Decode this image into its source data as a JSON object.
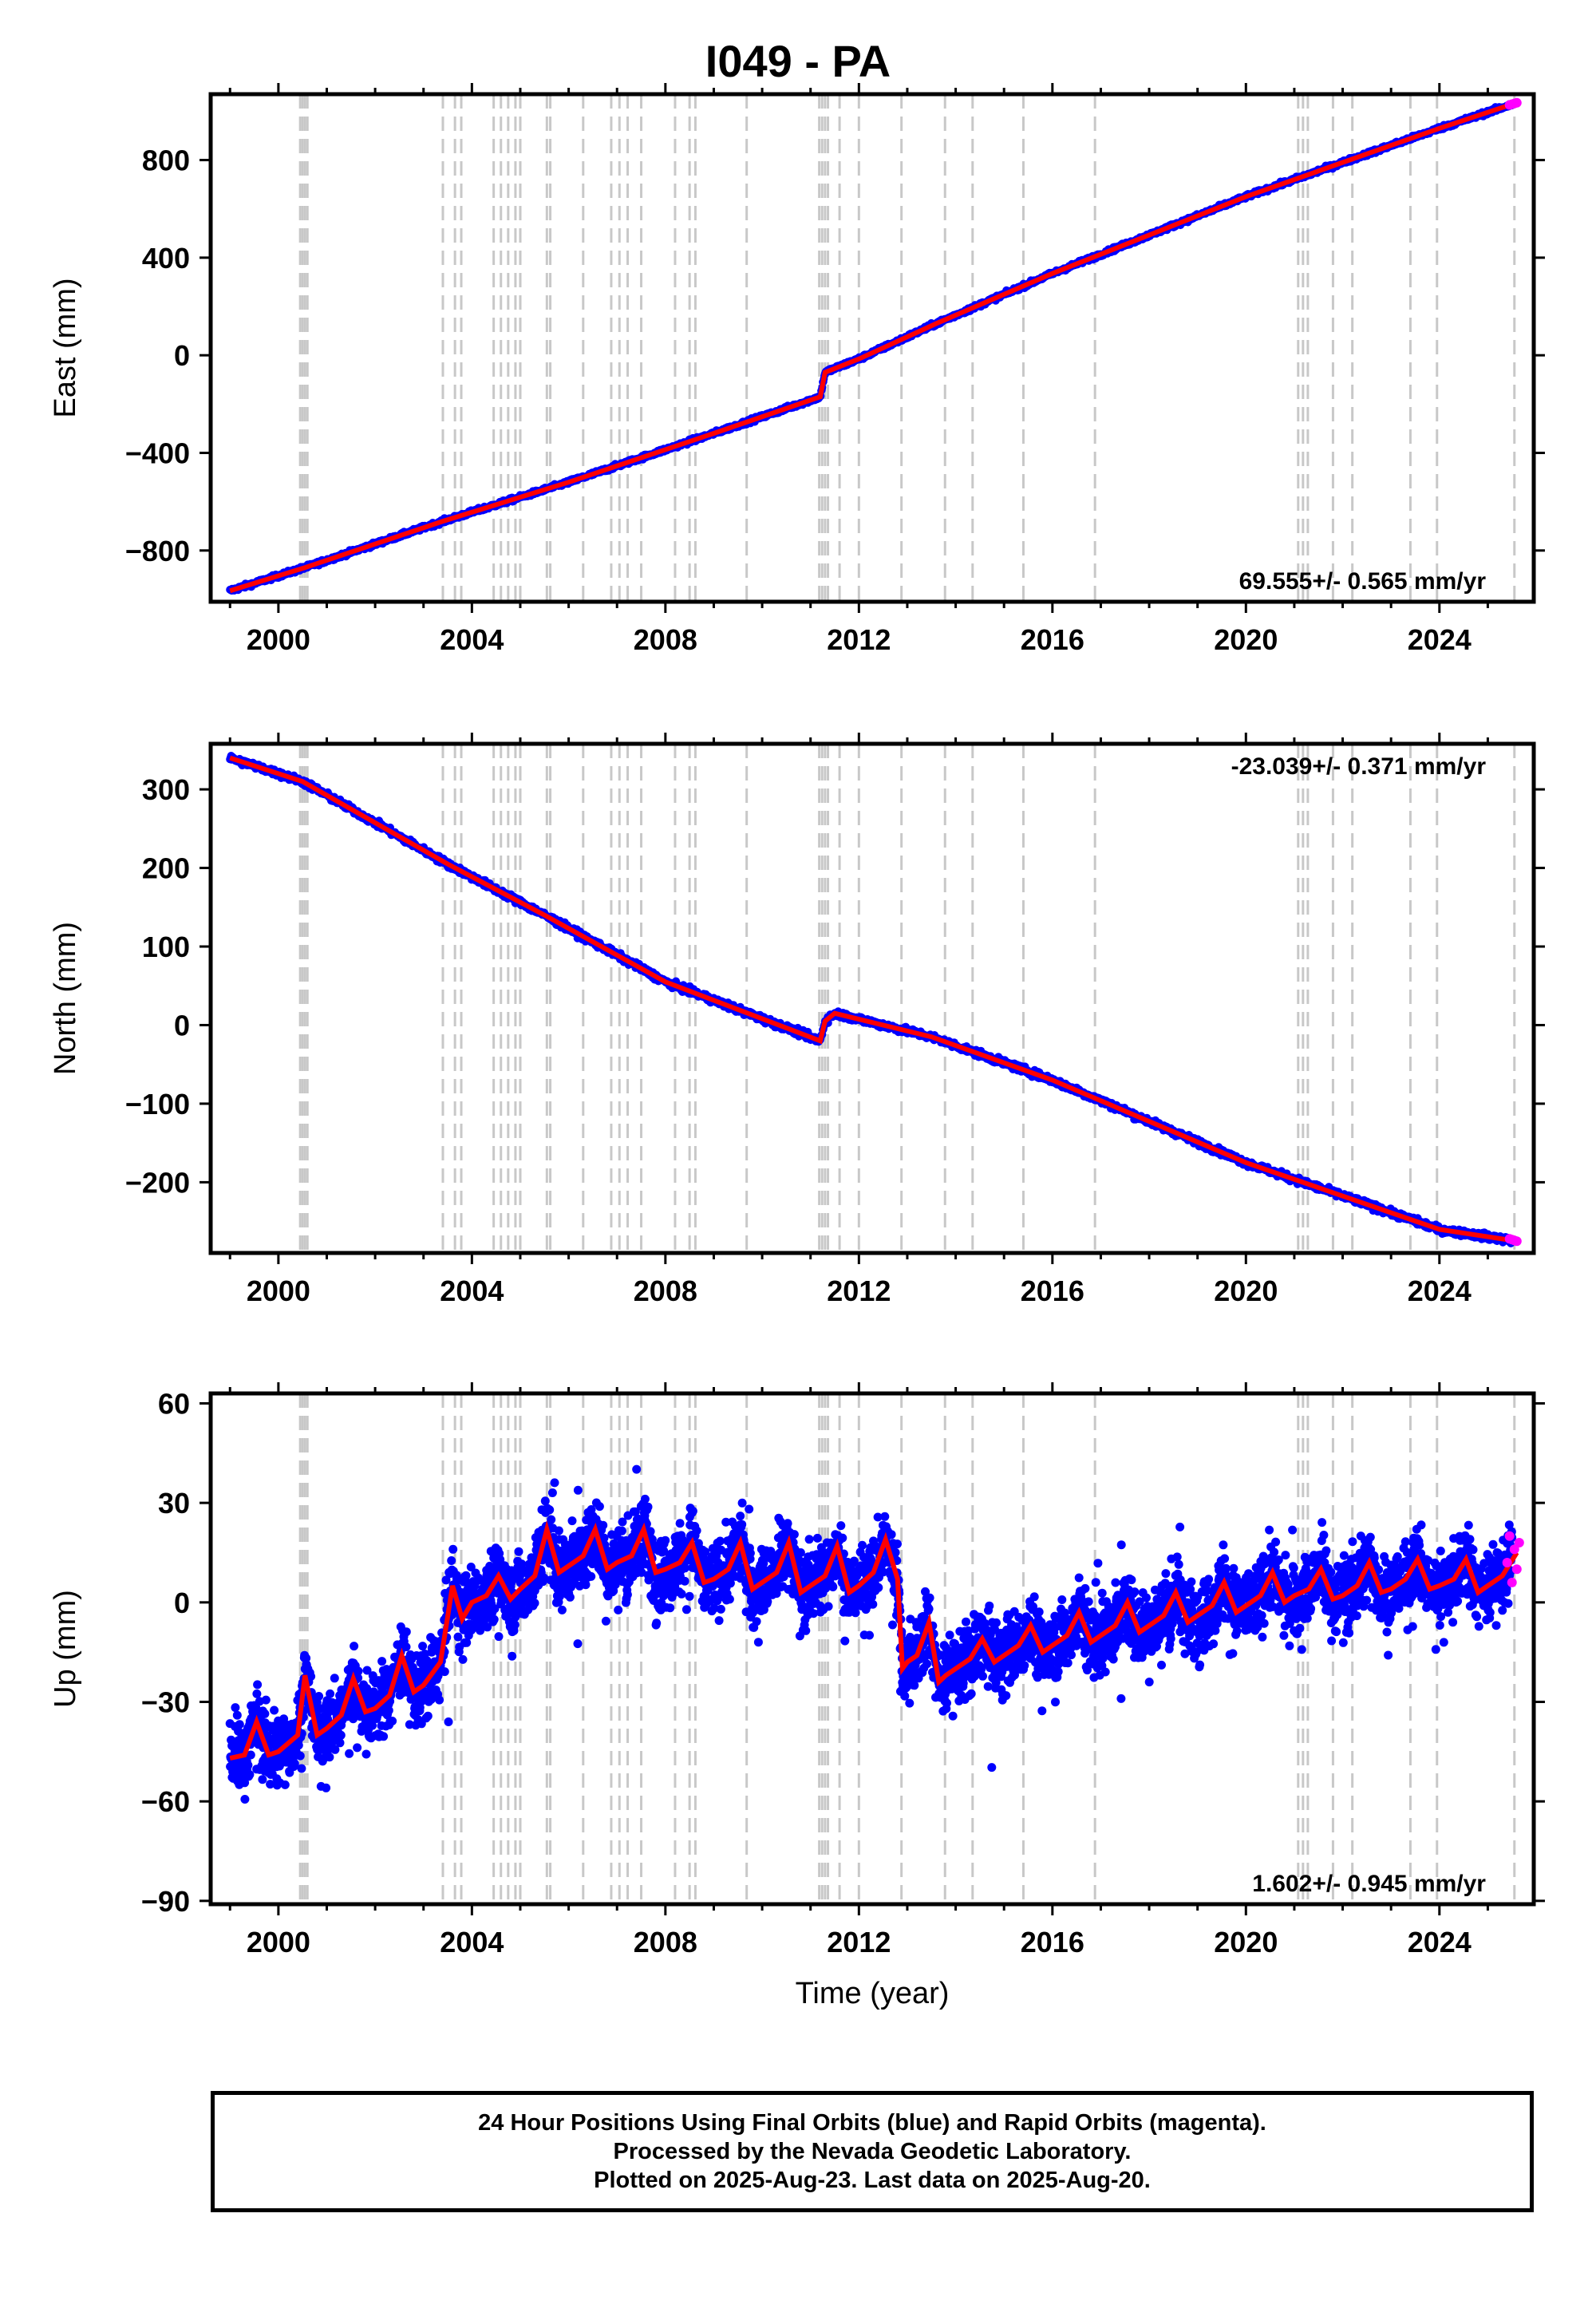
{
  "title": "I049 - PA",
  "footer": {
    "line1": "24 Hour Positions Using Final Orbits (blue) and Rapid Orbits (magenta).",
    "line2": "Processed by the Nevada Geodetic Laboratory.",
    "line3": "Plotted on 2025-Aug-23. Last data on 2025-Aug-20."
  },
  "colors": {
    "final_orbits": "#0000ff",
    "rapid_orbits": "#ff00ff",
    "model": "#ff0000",
    "event_lines": "#c8c8c8"
  },
  "chart_data": [
    {
      "type": "scatter",
      "ylabel": "East (mm)",
      "xlabel": "",
      "xlim": [
        1998.6,
        2025.95
      ],
      "ylim": [
        -1010,
        1070
      ],
      "xticks": [
        2000,
        2004,
        2008,
        2012,
        2016,
        2020,
        2024
      ],
      "yticks": [
        -800,
        -400,
        0,
        400,
        800
      ],
      "rate_label": "69.555+/- 0.565 mm/yr",
      "rate_position": "bottom-right",
      "grid": false,
      "model": {
        "x": [
          1999.0,
          2000.55,
          2003.4,
          2006.0,
          2009.0,
          2011.2,
          2011.3,
          2012.0,
          2013.6,
          2016.0,
          2020.0,
          2024.0,
          2025.6
        ],
        "y": [
          -965,
          -870,
          -680,
          -520,
          -320,
          -170,
          -70,
          -15,
          130,
          335,
          650,
          930,
          1035
        ]
      },
      "rapid_points": {
        "x": [
          2025.45,
          2025.5,
          2025.55,
          2025.6
        ],
        "y": [
          1026,
          1029,
          1032,
          1035
        ]
      }
    },
    {
      "type": "scatter",
      "ylabel": "North (mm)",
      "xlabel": "",
      "xlim": [
        1998.6,
        2025.95
      ],
      "ylim": [
        -290,
        358
      ],
      "xticks": [
        2000,
        2004,
        2008,
        2012,
        2016,
        2020,
        2024
      ],
      "yticks": [
        -200,
        -100,
        0,
        100,
        200,
        300
      ],
      "rate_label": "-23.039+/- 0.371 mm/yr",
      "rate_position": "top-right",
      "grid": false,
      "model": {
        "x": [
          1999.0,
          2000.5,
          2003.5,
          2005.5,
          2008.0,
          2011.2,
          2011.3,
          2011.5,
          2013.5,
          2016.0,
          2020.0,
          2024.0,
          2025.6
        ],
        "y": [
          340,
          310,
          205,
          140,
          55,
          -20,
          5,
          15,
          -15,
          -70,
          -175,
          -260,
          -275
        ]
      },
      "rapid_points": {
        "x": [
          2025.45,
          2025.5,
          2025.55,
          2025.6
        ],
        "y": [
          -272,
          -273,
          -274,
          -275
        ]
      }
    },
    {
      "type": "scatter",
      "ylabel": "Up (mm)",
      "xlabel": "Time (year)",
      "xlim": [
        1998.6,
        2025.95
      ],
      "ylim": [
        -91,
        63
      ],
      "xticks": [
        2000,
        2004,
        2008,
        2012,
        2016,
        2020,
        2024
      ],
      "yticks": [
        -90,
        -60,
        -30,
        0,
        30,
        60
      ],
      "rate_label": "1.602+/- 0.945 mm/yr",
      "rate_position": "bottom-right",
      "grid": false,
      "model": {
        "x": [
          1999.0,
          1999.3,
          1999.55,
          1999.8,
          2000.0,
          2000.4,
          2000.55,
          2000.8,
          2001.0,
          2001.3,
          2001.55,
          2001.8,
          2002.0,
          2002.3,
          2002.55,
          2002.8,
          2003.0,
          2003.35,
          2003.6,
          2003.8,
          2004.0,
          2004.3,
          2004.55,
          2004.8,
          2005.0,
          2005.3,
          2005.55,
          2005.8,
          2006.0,
          2006.3,
          2006.55,
          2006.8,
          2007.0,
          2007.3,
          2007.55,
          2007.8,
          2008.0,
          2008.3,
          2008.55,
          2008.8,
          2009.0,
          2009.3,
          2009.55,
          2009.8,
          2010.0,
          2010.3,
          2010.55,
          2010.8,
          2011.0,
          2011.3,
          2011.55,
          2011.8,
          2012.0,
          2012.3,
          2012.55,
          2012.8,
          2012.9,
          2013.0,
          2013.2,
          2013.45,
          2013.65,
          2013.8,
          2014.0,
          2014.3,
          2014.55,
          2014.8,
          2015.0,
          2015.3,
          2015.55,
          2015.8,
          2016.0,
          2016.3,
          2016.55,
          2016.8,
          2017.0,
          2017.3,
          2017.55,
          2017.8,
          2018.0,
          2018.3,
          2018.55,
          2018.8,
          2019.0,
          2019.3,
          2019.55,
          2019.8,
          2020.0,
          2020.3,
          2020.55,
          2020.8,
          2021.0,
          2021.3,
          2021.55,
          2021.8,
          2022.0,
          2022.3,
          2022.55,
          2022.8,
          2023.0,
          2023.3,
          2023.55,
          2023.8,
          2024.0,
          2024.3,
          2024.55,
          2024.8,
          2025.0,
          2025.3,
          2025.6
        ],
        "y": [
          -47,
          -46,
          -36,
          -46,
          -45,
          -40,
          -22,
          -40,
          -38,
          -34,
          -23,
          -33,
          -32,
          -28,
          -16,
          -27,
          -25,
          -18,
          5,
          -5,
          0,
          2,
          8,
          1,
          4,
          8,
          22,
          9,
          11,
          14,
          22,
          10,
          12,
          14,
          22,
          9,
          10,
          12,
          18,
          6,
          7,
          10,
          18,
          4,
          6,
          9,
          18,
          3,
          5,
          8,
          17,
          3,
          5,
          9,
          19,
          7,
          -20,
          -18,
          -16,
          -6,
          -24,
          -22,
          -20,
          -17,
          -11,
          -18,
          -16,
          -13,
          -7,
          -15,
          -13,
          -10,
          -3,
          -12,
          -10,
          -7,
          0,
          -9,
          -7,
          -4,
          3,
          -6,
          -4,
          -1,
          6,
          -3,
          -1,
          2,
          9,
          0,
          2,
          4,
          10,
          1,
          2,
          5,
          12,
          3,
          4,
          7,
          13,
          4,
          5,
          7,
          13,
          3,
          5,
          8,
          15
        ]
      },
      "rapid_points": {
        "x": [
          2025.4,
          2025.45,
          2025.5,
          2025.55,
          2025.6,
          2025.65
        ],
        "y": [
          12,
          20,
          6,
          16,
          10,
          18
        ]
      }
    }
  ],
  "event_lines": [
    2000.45,
    2000.5,
    2000.55,
    2000.6,
    2003.4,
    2003.65,
    2003.78,
    2004.45,
    2004.6,
    2004.75,
    2004.9,
    2005.0,
    2005.55,
    2005.62,
    2006.3,
    2006.88,
    2007.05,
    2007.22,
    2007.5,
    2008.2,
    2008.5,
    2008.62,
    2009.68,
    2011.18,
    2011.24,
    2011.3,
    2011.36,
    2011.6,
    2012.0,
    2012.88,
    2013.78,
    2014.35,
    2015.4,
    2016.88,
    2021.08,
    2021.18,
    2021.28,
    2021.8,
    2022.2,
    2023.4,
    2023.95,
    2025.55
  ]
}
